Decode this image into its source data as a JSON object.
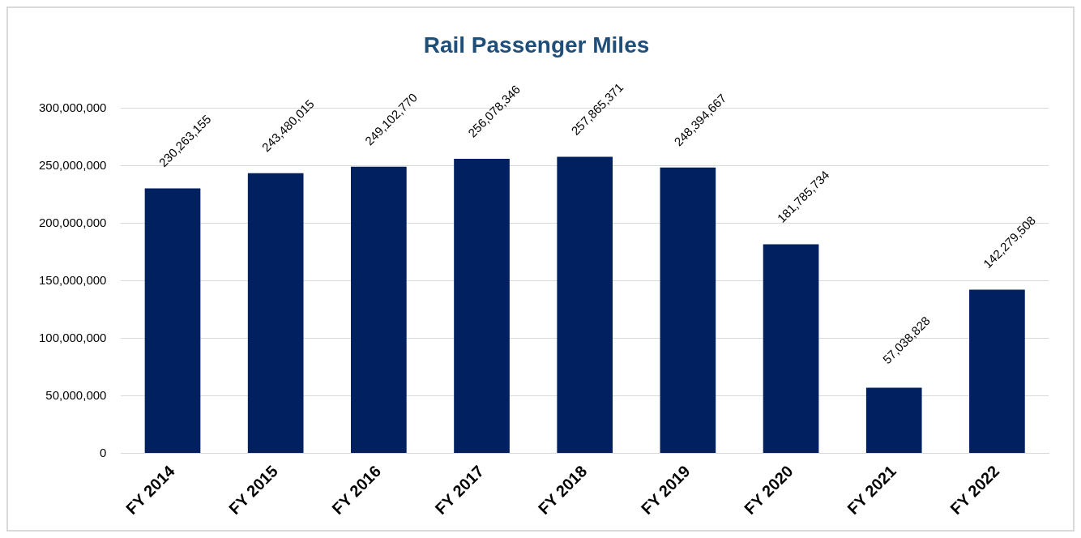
{
  "chart_data": {
    "type": "bar",
    "title": "Rail Passenger Miles",
    "categories": [
      "FY 2014",
      "FY 2015",
      "FY 2016",
      "FY 2017",
      "FY 2018",
      "FY 2019",
      "FY 2020",
      "FY 2021",
      "FY 2022"
    ],
    "values": [
      230263155,
      243480015,
      249102770,
      256078346,
      257865371,
      248394667,
      181785734,
      57038828,
      142279508
    ],
    "color": "#002060",
    "ylim": [
      0,
      300000000
    ],
    "yticks": [
      {
        "value": 0,
        "label": "0"
      },
      {
        "value": 50000000,
        "label": "50,000,000"
      },
      {
        "value": 100000000,
        "label": "100,000,000"
      },
      {
        "value": 150000000,
        "label": "150,000,000"
      },
      {
        "value": 200000000,
        "label": "200,000,000"
      },
      {
        "value": 250000000,
        "label": "250,000,000"
      },
      {
        "value": 300000000,
        "label": "300,000,000"
      }
    ],
    "value_labels": [
      "230,263,155",
      "243,480,015",
      "249,102,770",
      "256,078,346",
      "257,865,371",
      "248,394,667",
      "181,785,734",
      "57,038,828",
      "142,279,508"
    ],
    "grid": "y",
    "legend": false
  }
}
